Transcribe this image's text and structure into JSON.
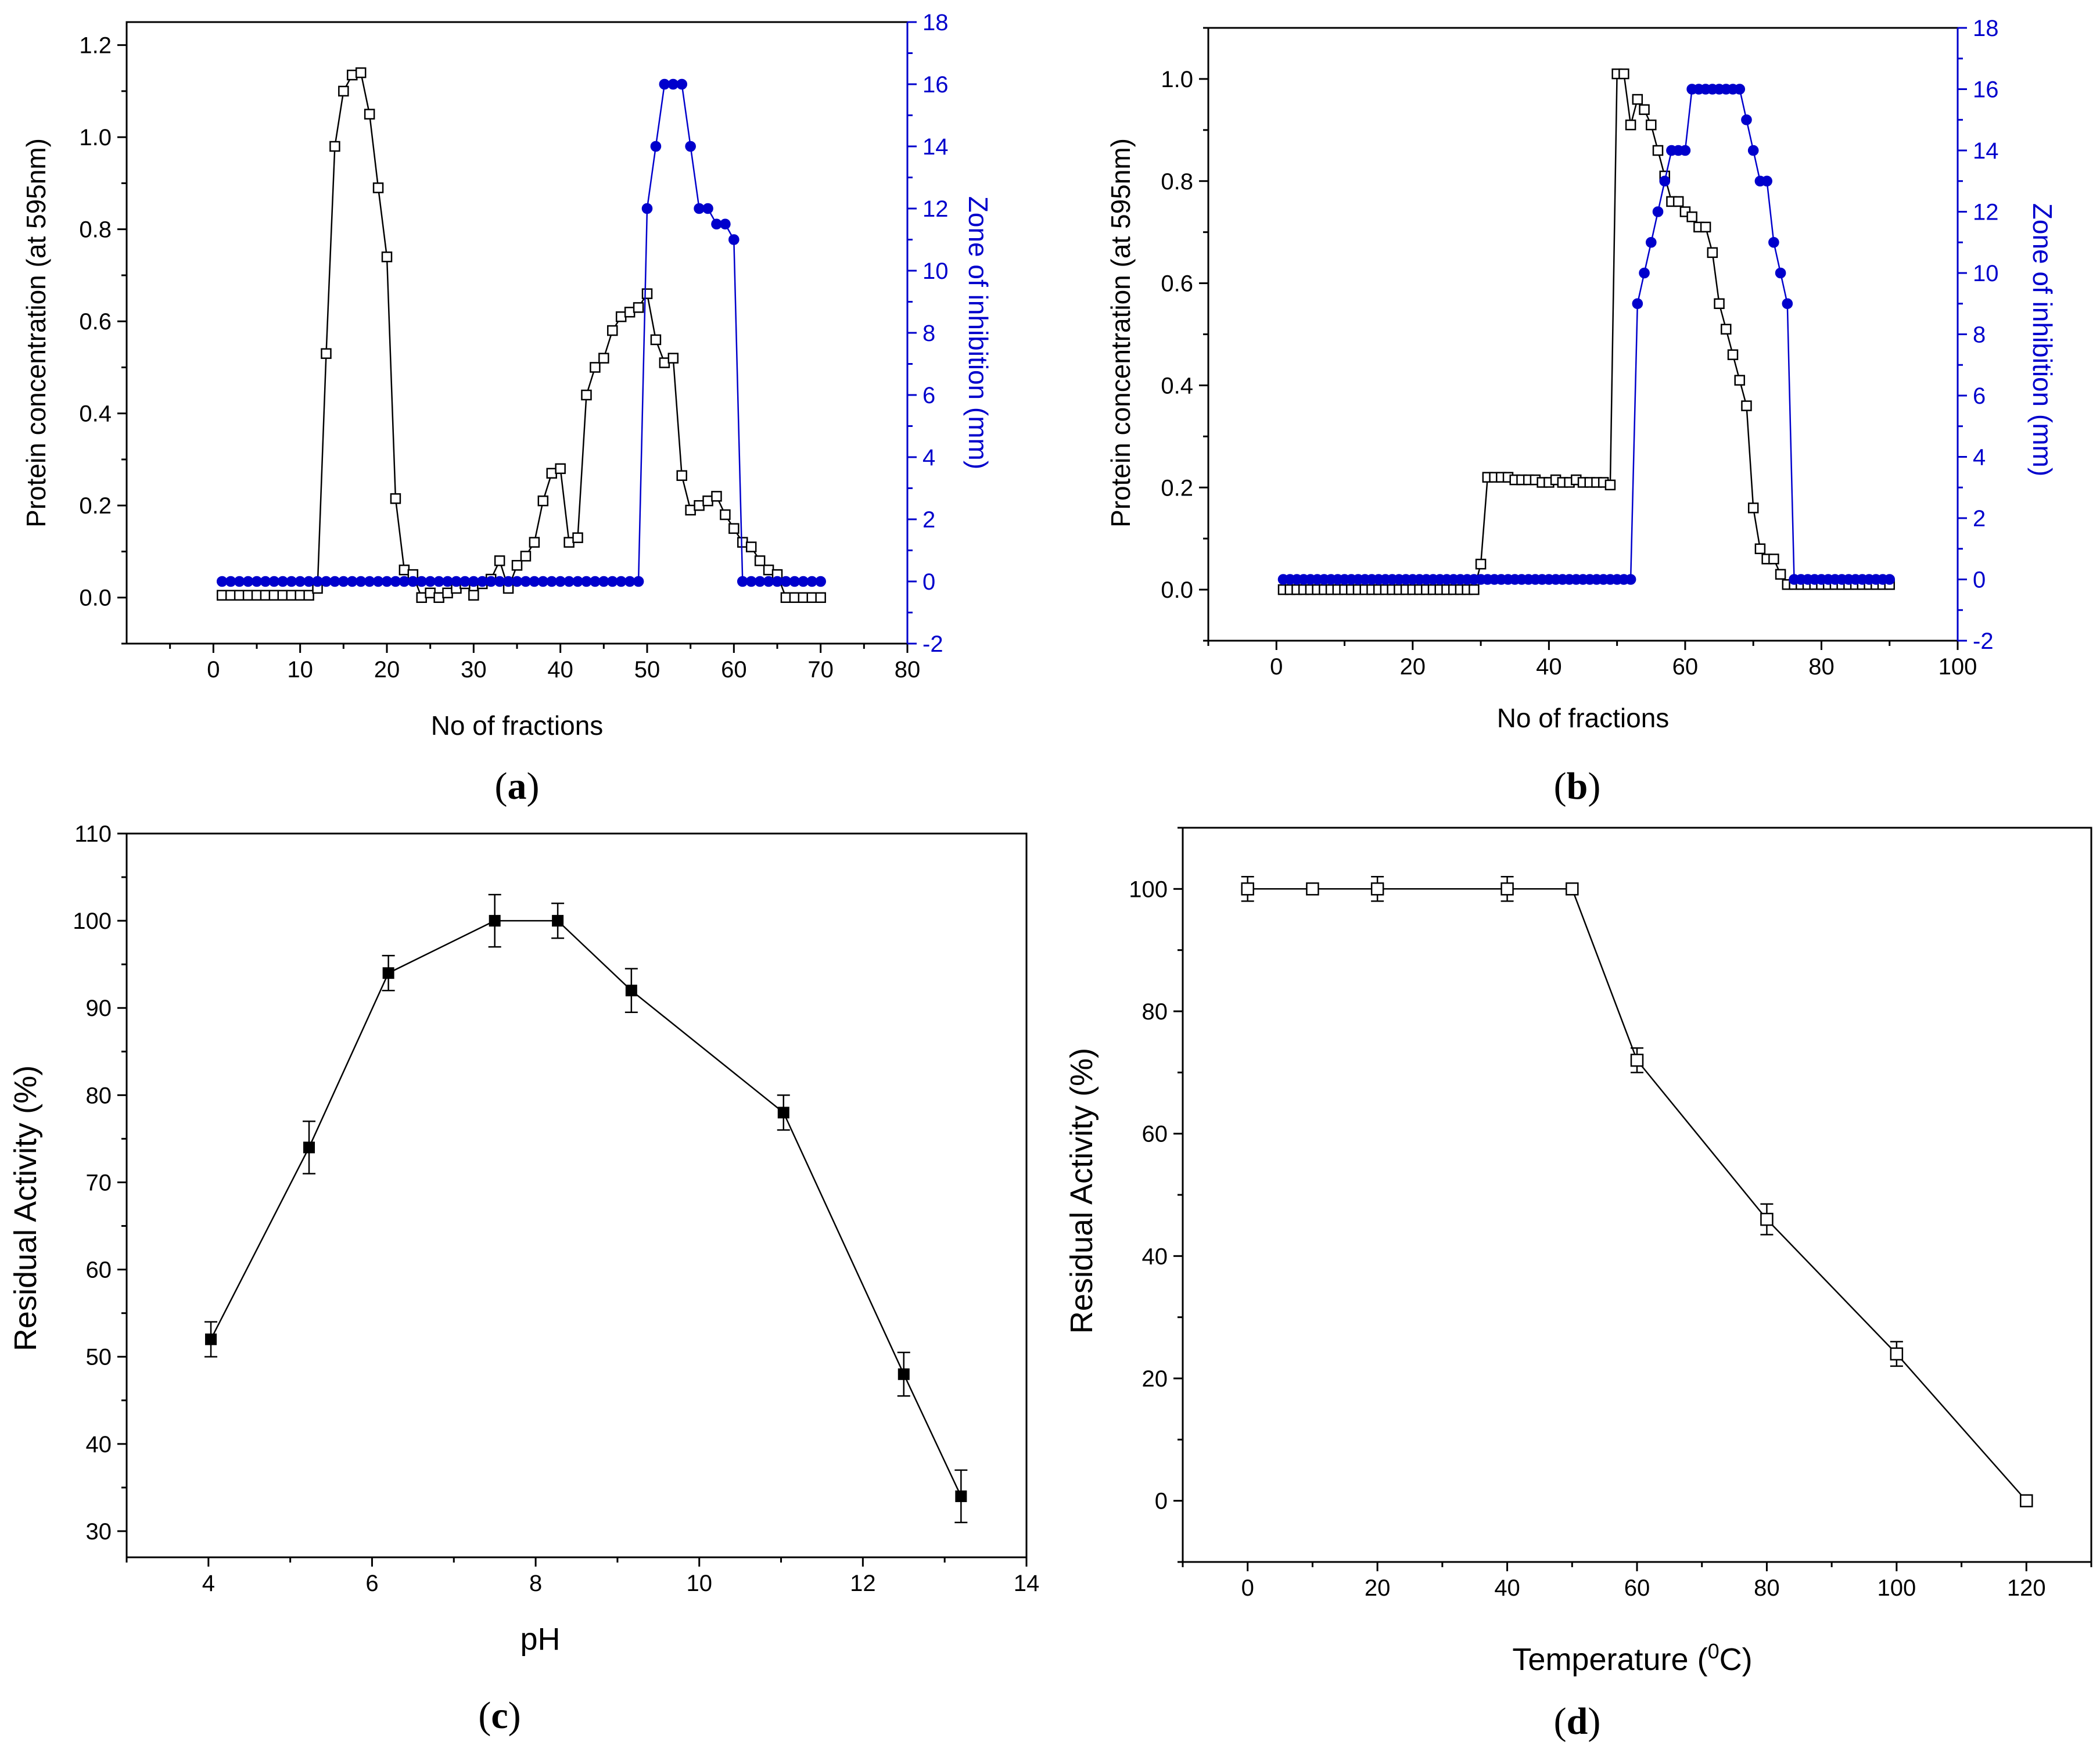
{
  "colors": {
    "axis": "#000000",
    "inhibition": "#0000cc",
    "open_marker_fill": "#ffffff"
  },
  "chart_data": [
    {
      "id": "a",
      "type": "line",
      "panel_label": "a",
      "xlabel": "No of fractions",
      "ylabel": "Protein concentration (at 595nm)",
      "y2label": "Zone of inhibition (mm)",
      "xlim": [
        -10,
        80
      ],
      "ylim": [
        -0.1,
        1.25
      ],
      "y2lim": [
        -2,
        18
      ],
      "xticks": [
        0,
        10,
        20,
        30,
        40,
        50,
        60,
        70,
        80
      ],
      "yticks": [
        0.0,
        0.2,
        0.4,
        0.6,
        0.8,
        1.0,
        1.2
      ],
      "y2ticks": [
        -2,
        0,
        2,
        4,
        6,
        8,
        10,
        12,
        14,
        16,
        18
      ],
      "series": [
        {
          "name": "Protein concentration",
          "axis": "y",
          "marker": "open-square",
          "color": "#000000",
          "x": [
            1,
            2,
            3,
            4,
            5,
            6,
            7,
            8,
            9,
            10,
            11,
            12,
            13,
            14,
            15,
            16,
            17,
            18,
            19,
            20,
            21,
            22,
            23,
            24,
            25,
            26,
            27,
            28,
            29,
            30,
            31,
            32,
            33,
            34,
            35,
            36,
            37,
            38,
            39,
            40,
            41,
            42,
            43,
            44,
            45,
            46,
            47,
            48,
            49,
            50,
            51,
            52,
            53,
            54,
            55,
            56,
            57,
            58,
            59,
            60,
            61,
            62,
            63,
            64,
            65,
            66,
            67,
            68,
            69,
            70
          ],
          "values": [
            0.005,
            0.005,
            0.005,
            0.005,
            0.005,
            0.005,
            0.005,
            0.005,
            0.005,
            0.005,
            0.005,
            0.02,
            0.53,
            0.98,
            1.1,
            1.135,
            1.14,
            1.05,
            0.89,
            0.74,
            0.215,
            0.06,
            0.05,
            0.0,
            0.01,
            0.0,
            0.01,
            0.02,
            0.03,
            0.005,
            0.03,
            0.04,
            0.08,
            0.02,
            0.07,
            0.09,
            0.12,
            0.21,
            0.27,
            0.28,
            0.12,
            0.13,
            0.44,
            0.5,
            0.52,
            0.58,
            0.61,
            0.62,
            0.63,
            0.66,
            0.56,
            0.51,
            0.52,
            0.265,
            0.19,
            0.2,
            0.21,
            0.22,
            0.18,
            0.15,
            0.12,
            0.11,
            0.08,
            0.06,
            0.05,
            0.0,
            0.0,
            0.0,
            0.0,
            0.0
          ]
        },
        {
          "name": "Zone of inhibition",
          "axis": "y2",
          "marker": "filled-circle",
          "color": "#0000cc",
          "x": [
            1,
            2,
            3,
            4,
            5,
            6,
            7,
            8,
            9,
            10,
            11,
            12,
            13,
            14,
            15,
            16,
            17,
            18,
            19,
            20,
            21,
            22,
            23,
            24,
            25,
            26,
            27,
            28,
            29,
            30,
            31,
            32,
            33,
            34,
            35,
            36,
            37,
            38,
            39,
            40,
            41,
            42,
            43,
            44,
            45,
            46,
            47,
            48,
            49,
            50,
            51,
            52,
            53,
            54,
            55,
            56,
            57,
            58,
            59,
            60,
            61,
            62,
            63,
            64,
            65,
            66,
            67,
            68,
            69,
            70
          ],
          "values": [
            0,
            0,
            0,
            0,
            0,
            0,
            0,
            0,
            0,
            0,
            0,
            0,
            0,
            0,
            0,
            0,
            0,
            0,
            0,
            0,
            0,
            0,
            0,
            0,
            0,
            0,
            0,
            0,
            0,
            0,
            0,
            0,
            0,
            0,
            0,
            0,
            0,
            0,
            0,
            0,
            0,
            0,
            0,
            0,
            0,
            0,
            0,
            0,
            0,
            12,
            14,
            16,
            16,
            16,
            14,
            12,
            12,
            11.5,
            11.5,
            11,
            0,
            0,
            0,
            0,
            0,
            0,
            0,
            0,
            0,
            0
          ]
        }
      ]
    },
    {
      "id": "b",
      "type": "line",
      "panel_label": "b",
      "xlabel": "No of fractions",
      "ylabel": "Protein concentration (at 595nm)",
      "y2label": "Zone of inhibition (mm)",
      "xlim": [
        -10,
        100
      ],
      "ylim": [
        -0.1,
        1.1
      ],
      "y2lim": [
        -2,
        18
      ],
      "xticks": [
        0,
        20,
        40,
        60,
        80,
        100
      ],
      "yticks": [
        0.0,
        0.2,
        0.4,
        0.6,
        0.8,
        1.0
      ],
      "y2ticks": [
        -2,
        0,
        2,
        4,
        6,
        8,
        10,
        12,
        14,
        16,
        18
      ],
      "series": [
        {
          "name": "Protein concentration",
          "axis": "y",
          "marker": "open-square",
          "color": "#000000",
          "x": [
            1,
            2,
            3,
            4,
            5,
            6,
            7,
            8,
            9,
            10,
            11,
            12,
            13,
            14,
            15,
            16,
            17,
            18,
            19,
            20,
            21,
            22,
            23,
            24,
            25,
            26,
            27,
            28,
            29,
            30,
            31,
            32,
            33,
            34,
            35,
            36,
            37,
            38,
            39,
            40,
            41,
            42,
            43,
            44,
            45,
            46,
            47,
            48,
            49,
            50,
            51,
            52,
            53,
            54,
            55,
            56,
            57,
            58,
            59,
            60,
            61,
            62,
            63,
            64,
            65,
            66,
            67,
            68,
            69,
            70,
            71,
            72,
            73,
            74,
            75,
            76,
            77,
            78,
            79,
            80,
            81,
            82,
            83,
            84,
            85,
            86,
            87,
            88,
            89,
            90
          ],
          "values": [
            0.0,
            0.0,
            0.0,
            0.0,
            0.0,
            0.0,
            0.0,
            0.0,
            0.0,
            0.0,
            0.0,
            0.0,
            0.0,
            0.0,
            0.0,
            0.0,
            0.0,
            0.0,
            0.0,
            0.0,
            0.0,
            0.0,
            0.0,
            0.0,
            0.0,
            0.0,
            0.0,
            0.0,
            0.0,
            0.05,
            0.22,
            0.22,
            0.22,
            0.22,
            0.215,
            0.215,
            0.215,
            0.215,
            0.21,
            0.21,
            0.215,
            0.21,
            0.21,
            0.215,
            0.21,
            0.21,
            0.21,
            0.21,
            0.205,
            1.01,
            1.01,
            0.91,
            0.96,
            0.94,
            0.91,
            0.86,
            0.81,
            0.76,
            0.76,
            0.74,
            0.73,
            0.71,
            0.71,
            0.66,
            0.56,
            0.51,
            0.46,
            0.41,
            0.36,
            0.16,
            0.08,
            0.06,
            0.06,
            0.03,
            0.01,
            0.01,
            0.01,
            0.01,
            0.01,
            0.01,
            0.01,
            0.01,
            0.01,
            0.01,
            0.01,
            0.01,
            0.01,
            0.01,
            0.01,
            0.01
          ]
        },
        {
          "name": "Zone of inhibition",
          "axis": "y2",
          "marker": "filled-circle",
          "color": "#0000cc",
          "x": [
            1,
            2,
            3,
            4,
            5,
            6,
            7,
            8,
            9,
            10,
            11,
            12,
            13,
            14,
            15,
            16,
            17,
            18,
            19,
            20,
            21,
            22,
            23,
            24,
            25,
            26,
            27,
            28,
            29,
            30,
            31,
            32,
            33,
            34,
            35,
            36,
            37,
            38,
            39,
            40,
            41,
            42,
            43,
            44,
            45,
            46,
            47,
            48,
            49,
            50,
            51,
            52,
            53,
            54,
            55,
            56,
            57,
            58,
            59,
            60,
            61,
            62,
            63,
            64,
            65,
            66,
            67,
            68,
            69,
            70,
            71,
            72,
            73,
            74,
            75,
            76,
            77,
            78,
            79,
            80,
            81,
            82,
            83,
            84,
            85,
            86,
            87,
            88,
            89,
            90
          ],
          "values": [
            0,
            0,
            0,
            0,
            0,
            0,
            0,
            0,
            0,
            0,
            0,
            0,
            0,
            0,
            0,
            0,
            0,
            0,
            0,
            0,
            0,
            0,
            0,
            0,
            0,
            0,
            0,
            0,
            0,
            0,
            0,
            0,
            0,
            0,
            0,
            0,
            0,
            0,
            0,
            0,
            0,
            0,
            0,
            0,
            0,
            0,
            0,
            0,
            0,
            0,
            0,
            0,
            9,
            10,
            11,
            12,
            13,
            14,
            14,
            14,
            16,
            16,
            16,
            16,
            16,
            16,
            16,
            16,
            15,
            14,
            13,
            13,
            11,
            10,
            9,
            0,
            0,
            0,
            0,
            0,
            0,
            0,
            0,
            0,
            0,
            0,
            0,
            0,
            0,
            0
          ]
        }
      ]
    },
    {
      "id": "c",
      "type": "line",
      "panel_label": "c",
      "xlabel": "pH",
      "ylabel": "Residual Activity (%)",
      "xlim": [
        3,
        14
      ],
      "ylim": [
        27,
        110
      ],
      "xticks": [
        4,
        6,
        8,
        10,
        12,
        14
      ],
      "yticks": [
        30,
        40,
        50,
        60,
        70,
        80,
        90,
        100,
        110
      ],
      "series": [
        {
          "name": "Residual Activity",
          "axis": "y",
          "marker": "filled-square",
          "color": "#000000",
          "x": [
            4.03,
            5.23,
            6.2,
            7.5,
            8.27,
            9.17,
            11.03,
            12.5,
            13.2
          ],
          "values": [
            52,
            74,
            94,
            100,
            100,
            92,
            78,
            48,
            34
          ],
          "errors": [
            2,
            3,
            2,
            3,
            2,
            2.5,
            2,
            2.5,
            3
          ]
        }
      ]
    },
    {
      "id": "d",
      "type": "line",
      "panel_label": "d",
      "xlabel": "Temperature (",
      "xlabel_sup": "0",
      "xlabel_end": "C)",
      "ylabel": "Residual Activity (%)",
      "xlim": [
        -10,
        130
      ],
      "ylim": [
        -10,
        110
      ],
      "xticks": [
        0,
        20,
        40,
        60,
        80,
        100,
        120
      ],
      "yticks": [
        0,
        20,
        40,
        60,
        80,
        100
      ],
      "series": [
        {
          "name": "Residual Activity",
          "axis": "y",
          "marker": "open-square",
          "color": "#000000",
          "x": [
            0,
            10,
            20,
            40,
            50,
            60,
            80,
            100,
            120
          ],
          "values": [
            100,
            100,
            100,
            100,
            100,
            72,
            46,
            24,
            0
          ],
          "errors": [
            2,
            0.5,
            2,
            2,
            0.5,
            2,
            2.5,
            2,
            0
          ]
        }
      ]
    }
  ]
}
